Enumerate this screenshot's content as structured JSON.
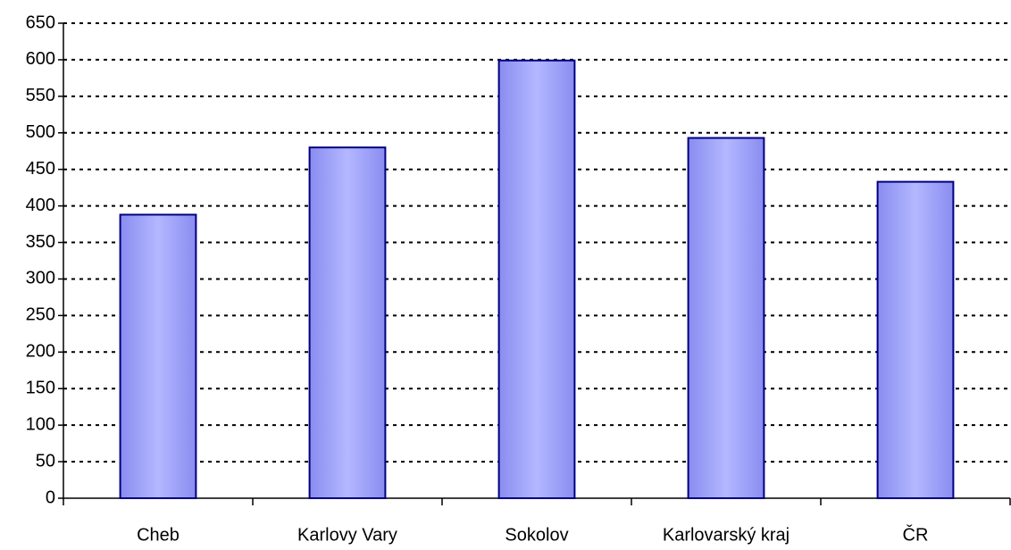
{
  "chart_data": {
    "type": "bar",
    "categories": [
      "Cheb",
      "Karlovy Vary",
      "Sokolov",
      "Karlovarský kraj",
      "ČR"
    ],
    "values": [
      388,
      480,
      599,
      493,
      433
    ],
    "color": "#b3b8ff",
    "ylim": [
      0,
      650
    ],
    "yticks": [
      0,
      50,
      100,
      150,
      200,
      250,
      300,
      350,
      400,
      450,
      500,
      550,
      600,
      650
    ],
    "grid": true
  }
}
